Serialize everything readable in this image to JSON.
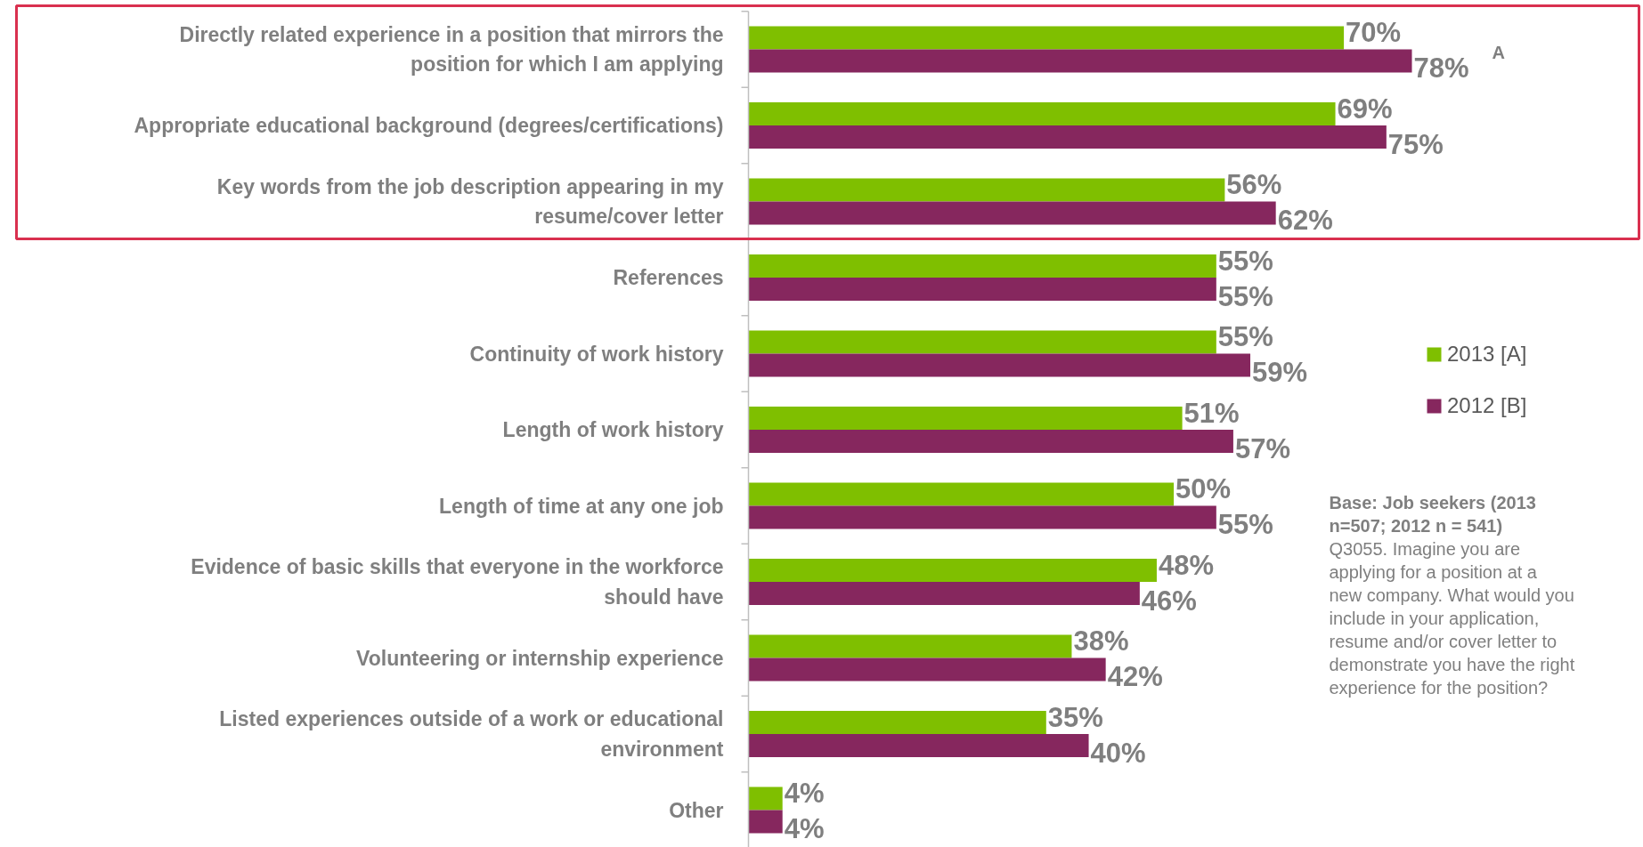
{
  "chart_data": {
    "type": "bar",
    "orientation": "horizontal",
    "categories": [
      "Directly related experience in a position that mirrors the position for which I am applying",
      "Appropriate educational background (degrees/certifications)",
      "Key words from the job description appearing in my resume/cover letter",
      "References",
      "Continuity of work history",
      "Length of work history",
      "Length of time at any one job",
      "Evidence of basic skills that everyone in the workforce should have",
      "Volunteering or internship experience",
      "Listed experiences outside of a work or educational environment",
      "Other"
    ],
    "series": [
      {
        "name": "2013 [A]",
        "color": "#7fbf00",
        "values": [
          70,
          69,
          56,
          55,
          55,
          51,
          50,
          48,
          38,
          35,
          4
        ],
        "value_labels": [
          "70%",
          "69%",
          "56%",
          "55%",
          "55%",
          "51%",
          "50%",
          "48%",
          "38%",
          "35%",
          "4%"
        ]
      },
      {
        "name": "2012 [B]",
        "color": "#86275e",
        "values": [
          78,
          75,
          62,
          55,
          59,
          57,
          55,
          46,
          42,
          40,
          4
        ],
        "value_labels": [
          "78%",
          "75%",
          "62%",
          "55%",
          "59%",
          "57%",
          "55%",
          "46%",
          "42%",
          "40%",
          "4%"
        ]
      }
    ],
    "legend": "right",
    "annotations": [
      "A",
      "Base:  Job seekers (2013 n=507; 2012 n = 541)",
      "Q3055. Imagine you are applying for a position at a new company. What would you include in your application, resume and/or cover letter to demonstrate you have the right experience for the position?"
    ]
  }
}
